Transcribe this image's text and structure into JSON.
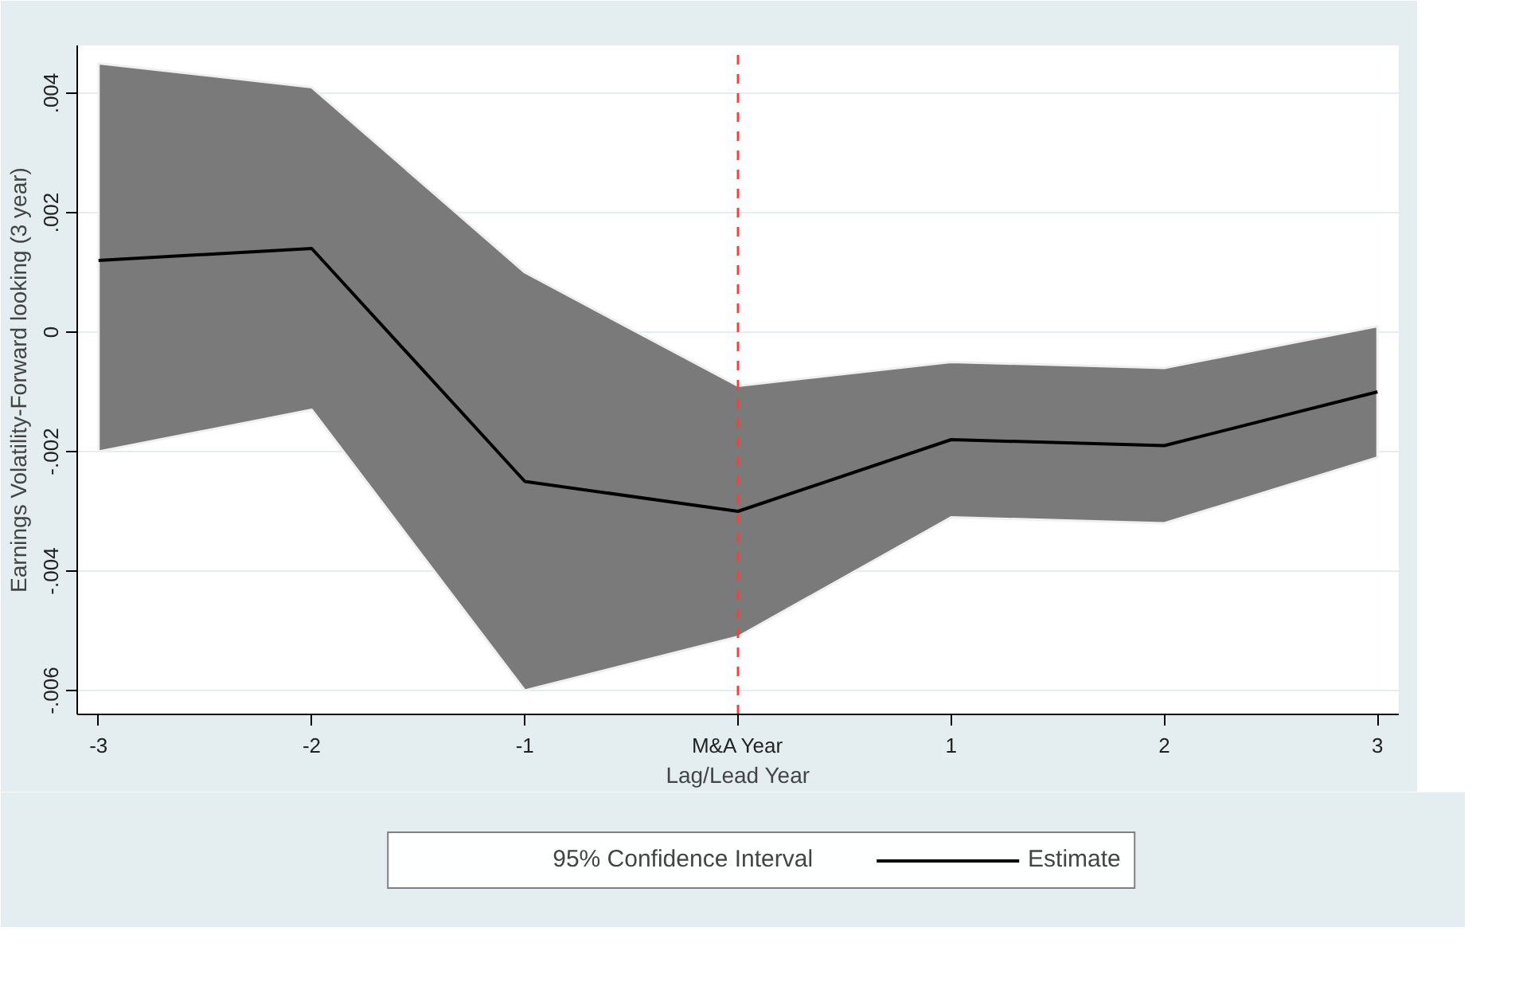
{
  "chart_data": {
    "type": "line",
    "xlabel": "Lag/Lead Year",
    "ylabel": "Earnings Volatility-Forward looking (3 year)",
    "x": [
      -3,
      -2,
      -1,
      0,
      1,
      2,
      3
    ],
    "series": [
      {
        "name": "Estimate",
        "color": "#000000",
        "values": [
          0.0012,
          0.0014,
          -0.0025,
          -0.003,
          -0.0018,
          -0.0019,
          -0.001
        ],
        "upper": [
          0.0045,
          0.0041,
          0.001,
          -0.0009,
          -0.0005,
          -0.0006,
          0.0001
        ],
        "lower": [
          -0.002,
          -0.0013,
          -0.006,
          -0.0051,
          -0.0031,
          -0.0032,
          -0.0021
        ]
      }
    ],
    "annotations": [
      "95% Confidence Interval"
    ],
    "xlim": [
      -3.1,
      3.1
    ],
    "ylim": [
      -0.0064,
      0.0048
    ],
    "xticks": [
      -3,
      -2,
      -1,
      {
        "value": 0,
        "label": "M&A Year"
      },
      1,
      2,
      3
    ],
    "yticks": [
      {
        "value": -0.006,
        "label": "-.006"
      },
      {
        "value": -0.004,
        "label": "-.004"
      },
      {
        "value": -0.002,
        "label": "-.002"
      },
      0,
      {
        "value": 0.002,
        "label": ".002"
      },
      {
        "value": 0.004,
        "label": ".004"
      }
    ],
    "ref_lines": [
      {
        "axis": "x",
        "value": 0,
        "label": null,
        "color": "#ff3b3b",
        "line_style": "dashed"
      }
    ],
    "grid": "y",
    "legend": "bottom",
    "marker": "none",
    "line_style": "solid"
  }
}
